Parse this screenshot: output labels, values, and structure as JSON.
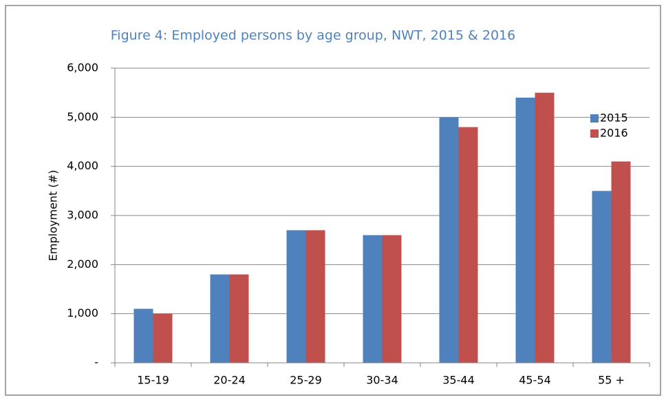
{
  "chart_data": {
    "type": "bar",
    "title": "Figure 4: Employed persons by age group, NWT, 2015 & 2016",
    "y_label": "Employment (#)",
    "categories": [
      "15-19",
      "20-24",
      "25-29",
      "30-34",
      "35-44",
      "45-54",
      "55 +"
    ],
    "series": [
      {
        "name": "2015",
        "color": "#4f81bd",
        "values": [
          1100,
          1800,
          2700,
          2600,
          5000,
          5400,
          3500
        ]
      },
      {
        "name": "2016",
        "color": "#c0504d",
        "values": [
          1000,
          1800,
          2700,
          2600,
          4800,
          5500,
          4100
        ]
      }
    ],
    "ylim": [
      0,
      6000
    ],
    "yticks": [
      {
        "value": 0,
        "label": "-"
      },
      {
        "value": 1000,
        "label": "1,000"
      },
      {
        "value": 2000,
        "label": "2,000"
      },
      {
        "value": 3000,
        "label": "3,000"
      },
      {
        "value": 4000,
        "label": "4,000"
      },
      {
        "value": 5000,
        "label": "5,000"
      },
      {
        "value": 6000,
        "label": "6,000"
      }
    ],
    "grid": true,
    "legend": "right"
  }
}
